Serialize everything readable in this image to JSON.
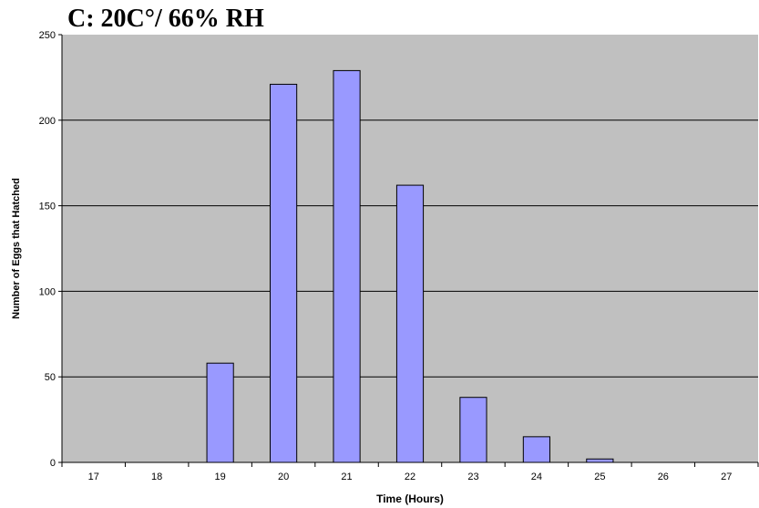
{
  "chart_data": {
    "type": "bar",
    "title": "C: 20C°/ 66% RH",
    "xlabel": "Time (Hours)",
    "ylabel": "Number of Eggs that Hatched",
    "categories": [
      "17",
      "18",
      "19",
      "20",
      "21",
      "22",
      "23",
      "24",
      "25",
      "26",
      "27"
    ],
    "values": [
      0,
      0,
      58,
      221,
      229,
      162,
      38,
      15,
      2,
      0,
      0
    ],
    "ylim": [
      0,
      250
    ],
    "yticks": [
      0,
      50,
      100,
      150,
      200,
      250
    ],
    "grid": true,
    "legend": "none",
    "colors": {
      "plot_background": "#c0c0c0",
      "bar_fill": "#9999ff",
      "bar_stroke": "#000000",
      "gridline": "#000000"
    }
  }
}
